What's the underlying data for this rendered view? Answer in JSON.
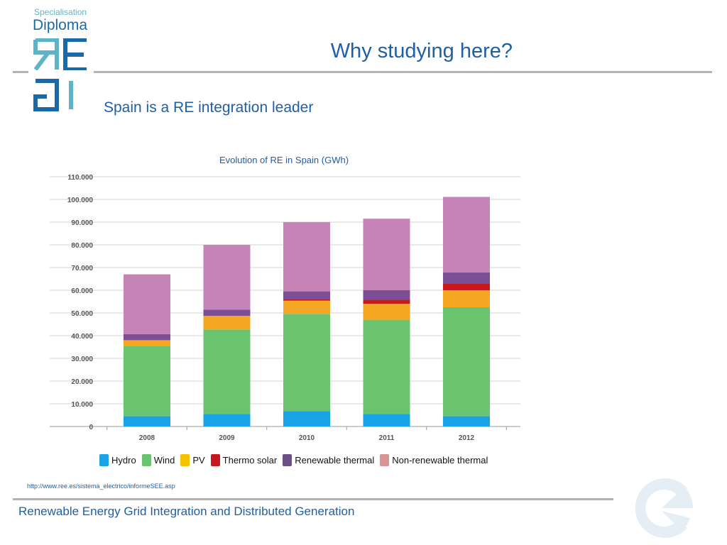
{
  "logo": {
    "small_text": "Specialisation",
    "big_text": "Diploma"
  },
  "slide": {
    "title": "Why studying here?",
    "subtitle": "Spain is a RE integration leader",
    "source": "http://www.ree.es/sistema_electrico/informeSEE.asp",
    "footer": "Renewable Energy Grid Integration and Distributed Generation"
  },
  "colors": {
    "brand_blue": "#1f5fa6",
    "logo_teal": "#5fb3c9",
    "logo_blue": "#1b6aa5"
  },
  "chart_data": {
    "type": "bar",
    "stacked": true,
    "title": "Evolution of RE in Spain (GWh)",
    "xlabel": "",
    "ylabel": "",
    "ylim": [
      0,
      110000
    ],
    "yticks": [
      0,
      10000,
      20000,
      30000,
      40000,
      50000,
      60000,
      70000,
      80000,
      90000,
      100000,
      110000
    ],
    "ytick_labels": [
      "0",
      "10.000",
      "20.000",
      "30.000",
      "40.000",
      "50.000",
      "60.000",
      "70.000",
      "80.000",
      "90.000",
      "100.000",
      "110.000"
    ],
    "categories": [
      "2008",
      "2009",
      "2010",
      "2011",
      "2012"
    ],
    "grid": true,
    "legend_position": "bottom",
    "series": [
      {
        "name": "Hydro",
        "color": "#17a3e6",
        "values": [
          4500,
          5500,
          6800,
          5500,
          4500
        ]
      },
      {
        "name": "Wind",
        "color": "#6ac36f",
        "values": [
          31000,
          37200,
          42800,
          41500,
          48000
        ]
      },
      {
        "name": "PV",
        "color": "#f5a623",
        "values": [
          2500,
          6000,
          5800,
          7000,
          7500
        ]
      },
      {
        "name": "Thermo solar",
        "color": "#c8181e",
        "values": [
          0,
          0,
          800,
          1800,
          3000
        ]
      },
      {
        "name": "Renewable thermal",
        "color": "#7b4e96",
        "values": [
          2700,
          2800,
          3300,
          4200,
          4800
        ]
      },
      {
        "name": "Non-renewable thermal",
        "color": "#c583b8",
        "values": [
          26300,
          28500,
          30500,
          31500,
          33300
        ]
      }
    ],
    "legend_swatch_colors": [
      "#17a3e6",
      "#6ac36f",
      "#f5c200",
      "#c8181e",
      "#6b4f87",
      "#d99393"
    ]
  }
}
